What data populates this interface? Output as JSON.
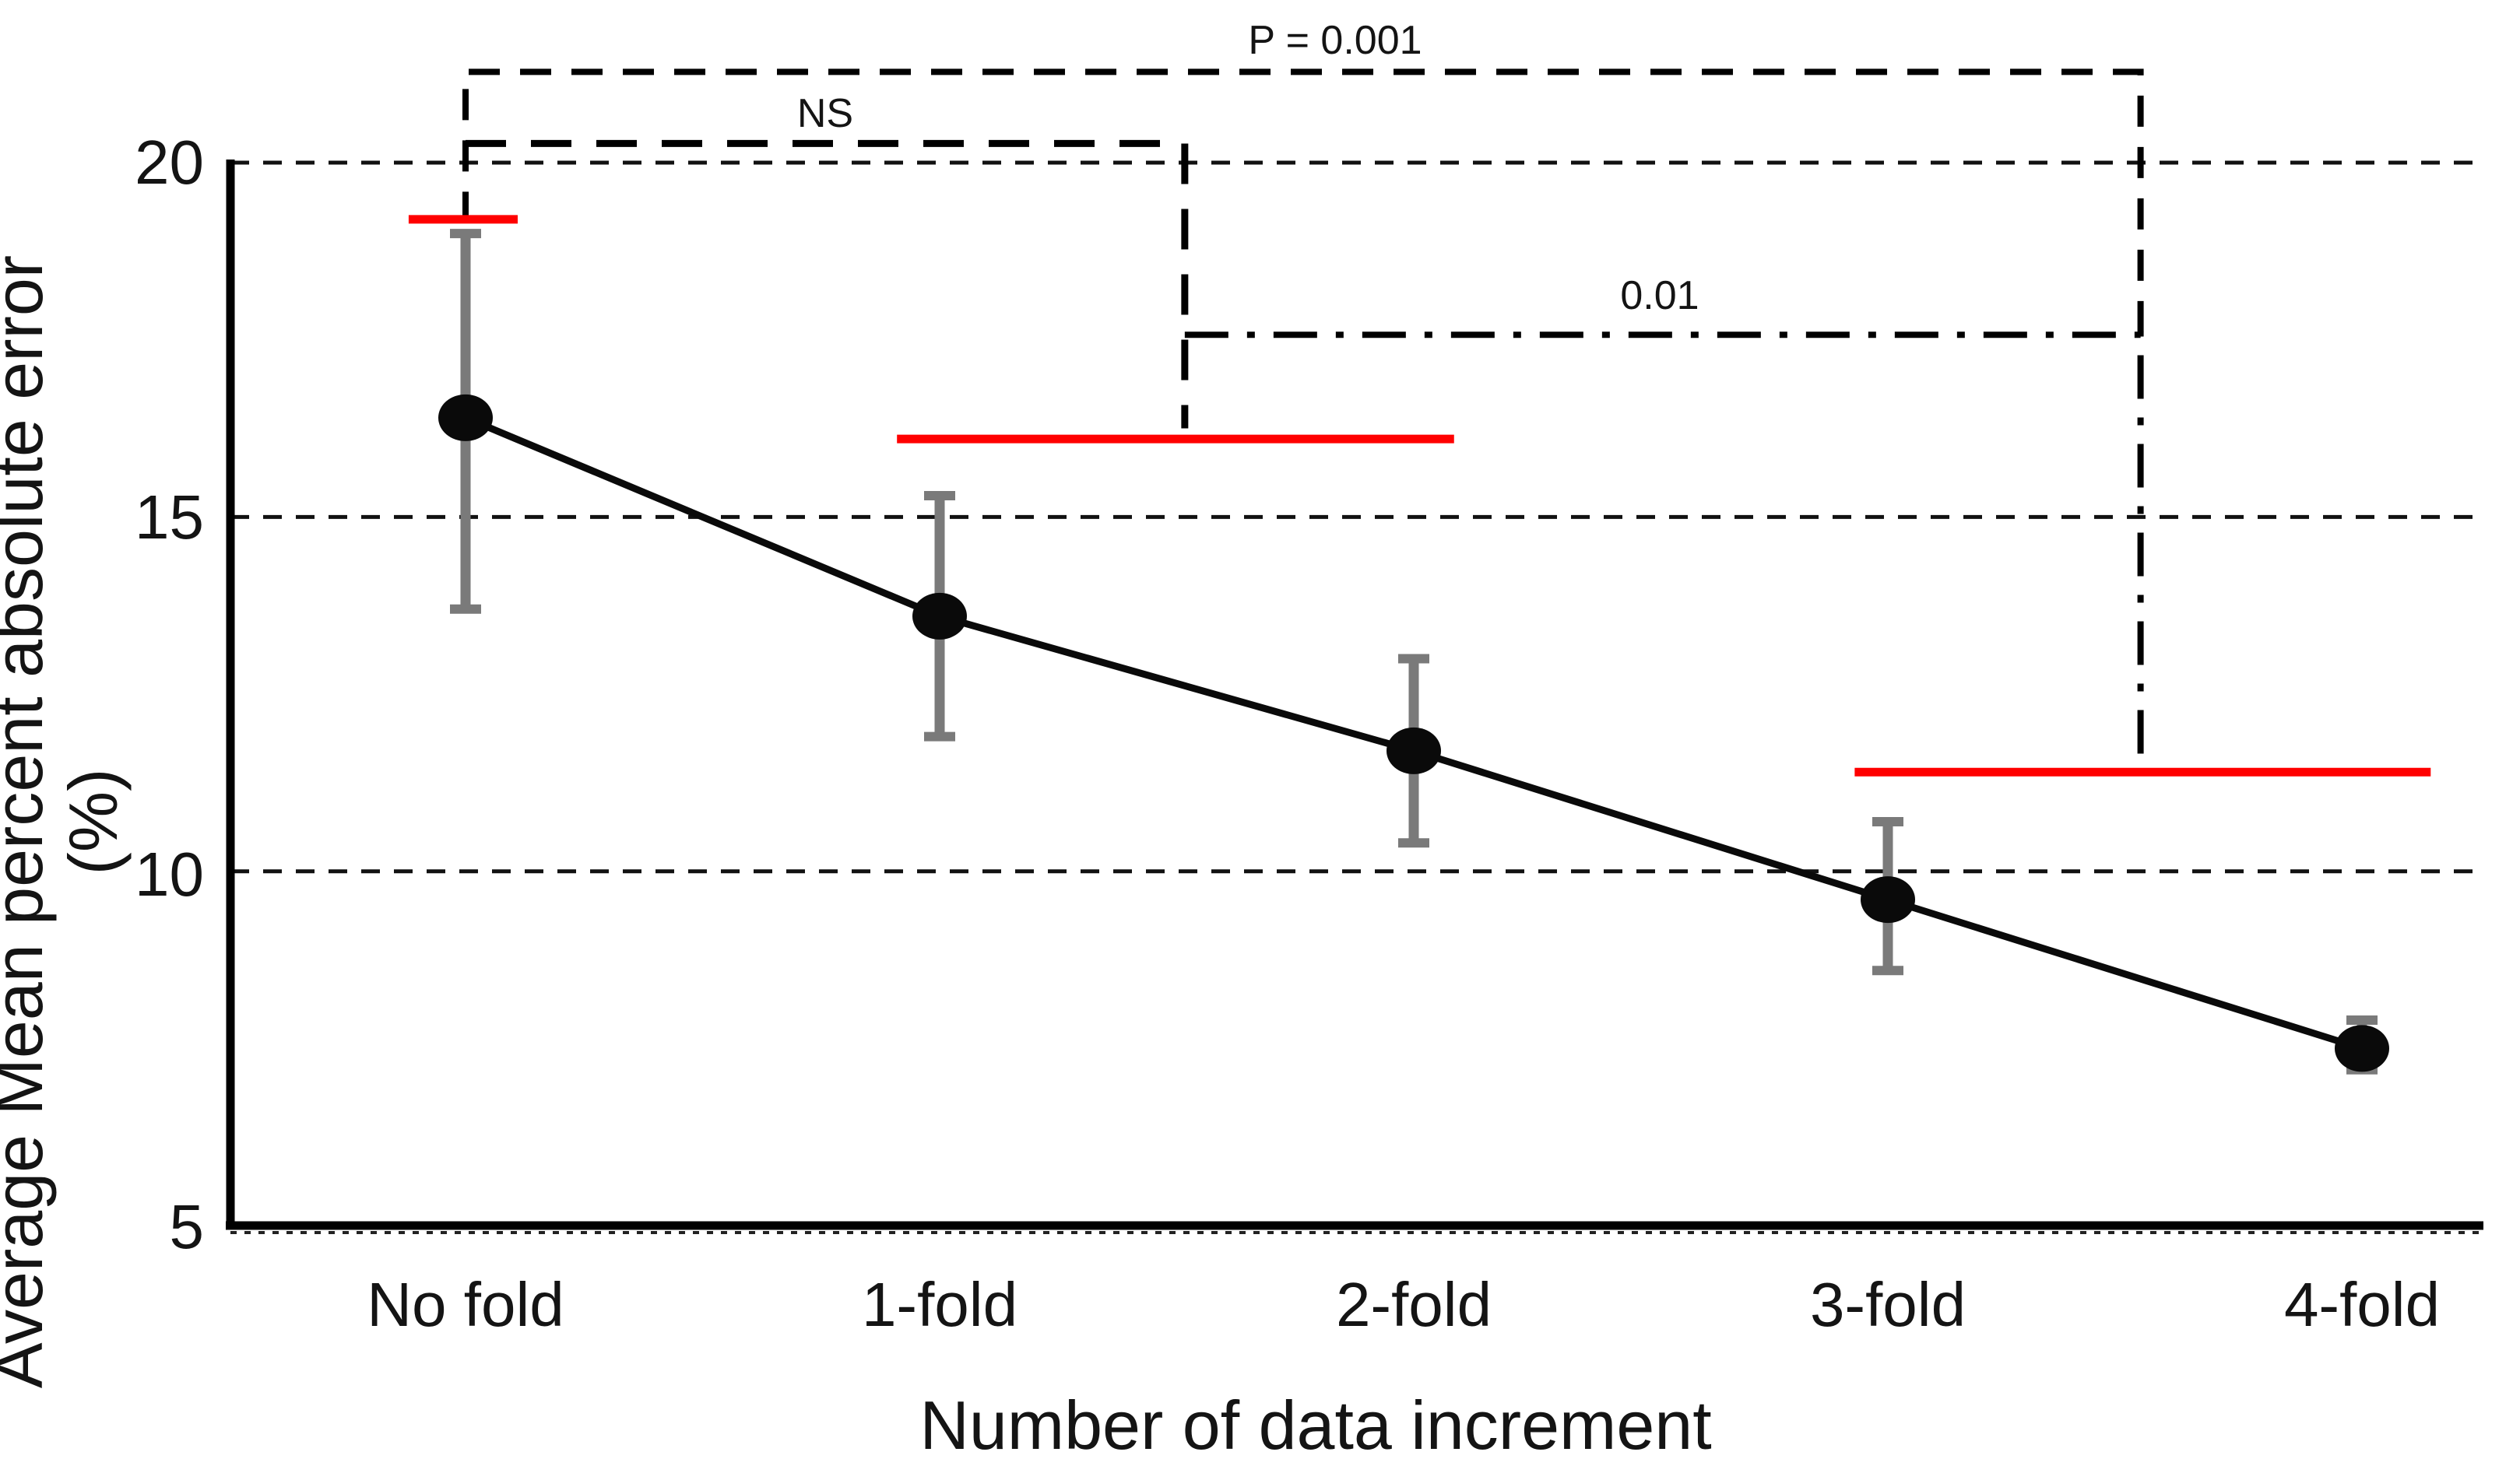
{
  "chart_data": {
    "type": "line",
    "title": "",
    "categories": [
      "No fold",
      "1-fold",
      "2-fold",
      "3-fold",
      "4-fold"
    ],
    "series": [
      {
        "name": "average-mean-percent-absolute-error",
        "values": [
          16.4,
          13.6,
          11.7,
          9.6,
          7.5
        ],
        "error_upper": [
          19.0,
          15.3,
          13.0,
          10.7,
          7.9
        ],
        "error_lower": [
          13.7,
          11.9,
          10.4,
          8.6,
          7.2
        ],
        "line_color": "#0a0a0a",
        "marker_color": "#0a0a0a",
        "error_bar_color": "#7a7a7a"
      }
    ],
    "xlabel": "Number of data increment",
    "ylabel": "Average Mean percent absolute error (%)",
    "y_ticks": [
      "20",
      "15",
      "10",
      "5"
    ],
    "y_tick_values": [
      20,
      15,
      10,
      5
    ],
    "ylim": [
      5,
      21.3
    ],
    "gridline_values": [
      20,
      15,
      10
    ],
    "grid": "horizontal-dashed",
    "legend_position": "none",
    "axis_color": "#000000",
    "gridline_color": "#111111",
    "reference_lines": [
      {
        "name": "ref-no-fold",
        "value": 19.2,
        "x_start": -0.12,
        "x_end": 0.11,
        "color": "#ff0000"
      },
      {
        "name": "ref-1fold-2fold",
        "value": 16.1,
        "x_start": 0.91,
        "x_end": 2.085,
        "color": "#ff0000"
      },
      {
        "name": "ref-3fold-4fold",
        "value": 11.4,
        "x_start": 2.93,
        "x_end": 4.145,
        "color": "#ff0000"
      }
    ],
    "significance_brackets": [
      {
        "label": "P = 0.001",
        "style": "dashed",
        "left_x": 0,
        "right_x": 3.533,
        "top_value": 21.28,
        "left_leg_bottom": 19.15,
        "right_leg_bottom": 17.57,
        "label_x": 1.835,
        "label_value": 21.73
      },
      {
        "label": "NS",
        "style": "dashed-bold",
        "left_x": 0,
        "right_x": 1.517,
        "top_value": 20.27,
        "left_leg_bottom": 20.27,
        "right_leg_bottom": 16.25,
        "label_x": 0.76,
        "label_value": 20.72
      },
      {
        "label": "0.01",
        "style": "dash-dot",
        "left_x": 1.517,
        "right_x": 3.533,
        "top_value": 17.57,
        "left_leg_bottom": 17.57,
        "right_leg_bottom": 11.48,
        "label_x": 2.52,
        "label_value": 18.12
      }
    ]
  }
}
